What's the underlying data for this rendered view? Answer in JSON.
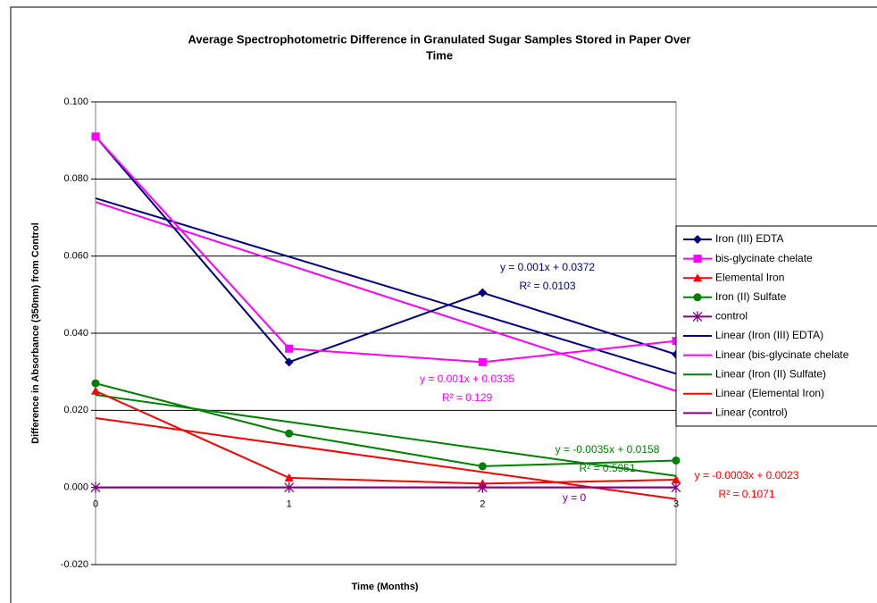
{
  "chart_data": {
    "type": "line",
    "title": [
      "Average Spectrophotometric Difference in Granulated Sugar Samples Stored in Paper  Over",
      "Time"
    ],
    "x_label": "Time (Months)",
    "y_label": "Difference in Absorbance (350nm) from Control",
    "x": [
      0,
      1,
      2,
      3
    ],
    "xlim": [
      0,
      3
    ],
    "xticks": [
      0,
      1,
      2,
      3
    ],
    "ylim": [
      -0.02,
      0.1
    ],
    "yticks": [
      {
        "value": -0.02,
        "label": "-0.020"
      },
      {
        "value": 0,
        "label": "0.000"
      },
      {
        "value": 0.02,
        "label": "0.020"
      },
      {
        "value": 0.04,
        "label": "0.040"
      },
      {
        "value": 0.06,
        "label": "0.060"
      },
      {
        "value": 0.08,
        "label": "0.080"
      },
      {
        "value": 0.1,
        "label": "0.100"
      }
    ],
    "grid": true,
    "legend": "right",
    "series": [
      {
        "name": "Iron (III) EDTA",
        "color": "#000080",
        "marker": "diamond",
        "values": [
          0.091,
          0.0325,
          0.0505,
          0.0345
        ]
      },
      {
        "name": "bis-glycinate chelate",
        "color": "#FF00FF",
        "marker": "square",
        "values": [
          0.091,
          0.036,
          0.0325,
          0.038
        ]
      },
      {
        "name": "Elemental Iron",
        "color": "#FF0000",
        "marker": "triangle",
        "values": [
          0.025,
          0.0025,
          0.001,
          0.002
        ]
      },
      {
        "name": "Iron (II) Sulfate",
        "color": "#008000",
        "marker": "circle",
        "values": [
          0.027,
          0.014,
          0.0055,
          0.007
        ]
      },
      {
        "name": "control",
        "color": "#800080",
        "marker": "star",
        "values": [
          0,
          0,
          0,
          0
        ]
      }
    ],
    "trendlines": [
      {
        "name": "Linear (Iron (III) EDTA)",
        "color": "#000080",
        "x": [
          0,
          3
        ],
        "values": [
          0.075,
          0.0295
        ]
      },
      {
        "name": "Linear (bis-glycinate chelate",
        "color": "#FF00FF",
        "x": [
          0,
          3
        ],
        "values": [
          0.074,
          0.025
        ]
      },
      {
        "name": "Linear (Iron (II) Sulfate)",
        "color": "#008000",
        "x": [
          0,
          3
        ],
        "values": [
          0.024,
          0.003
        ]
      },
      {
        "name": "Linear (Elemental Iron)",
        "color": "#FF0000",
        "x": [
          0,
          3
        ],
        "values": [
          0.018,
          -0.003
        ]
      },
      {
        "name": "Linear (control)",
        "color": "#800080",
        "x": [
          0,
          3
        ],
        "values": [
          0,
          0
        ]
      }
    ],
    "annotations": [
      {
        "color": "#000080",
        "lines": [
          "y = 0.001x + 0.0372",
          "R² = 0.0103"
        ]
      },
      {
        "color": "#FF00FF",
        "lines": [
          "y = 0.001x + 0.0335",
          "R² = 0.129"
        ]
      },
      {
        "color": "#008000",
        "lines": [
          "y = -0.0035x + 0.0158",
          "R² = 0.5951"
        ]
      },
      {
        "color": "#FF0000",
        "lines": [
          "y = -0.0003x + 0.0023",
          "R² = 0.1071"
        ]
      },
      {
        "color": "#800080",
        "lines": [
          "y = 0"
        ]
      }
    ]
  }
}
